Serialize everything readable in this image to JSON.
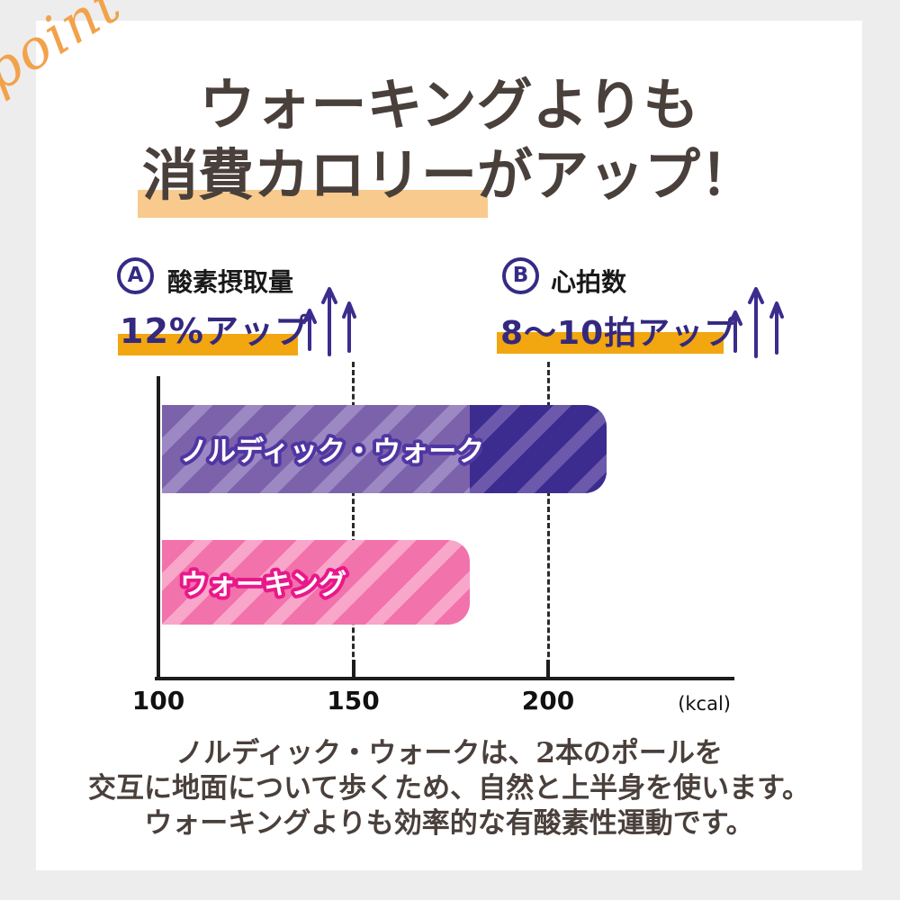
{
  "point_label": "point",
  "title": {
    "line1": "ウォーキングよりも",
    "line2": "消費カロリーがアップ！"
  },
  "badges": [
    {
      "letter": "A",
      "label": "酸素摂取量",
      "stat": "12%アップ"
    },
    {
      "letter": "B",
      "label": "心拍数",
      "stat": "8〜10拍アップ"
    }
  ],
  "chart_data": {
    "type": "bar",
    "orientation": "horizontal",
    "unit": "kcal",
    "xlabel": "(kcal)",
    "x_ticks": [
      100,
      150,
      200
    ],
    "x_tick_labels": [
      "100",
      "150",
      "200"
    ],
    "x_range": [
      100,
      247
    ],
    "gridlines": "dashed vertical at 150 and 200",
    "bars": [
      {
        "name": "ノルディック・ウォーク",
        "value": 214,
        "split_value": 179,
        "base_color": "#7b62ab",
        "stripe_color": "#9c88c2",
        "extra_base_color": "#3d2c8f",
        "extra_stripe_color": "#6c59ab",
        "label_outline": "#5036a2"
      },
      {
        "name": "ウォーキング",
        "value": 179,
        "base_color": "#f272ab",
        "stripe_color": "#f8a6c9",
        "label_outline": "#e9188a"
      }
    ]
  },
  "footer": {
    "line1": "ノルディック・ウォークは、2本のポールを",
    "line2": "交互に地面について歩くため、自然と上半身を使います。",
    "line3": "ウォーキングよりも効率的な有酸素性運動です。"
  },
  "colors": {
    "background": "#ededee",
    "card": "#ffffff",
    "title_text": "#4a403b",
    "title_highlight": "#f8ca8d",
    "stat_text": "#34297e",
    "stat_highlight": "#f2a60f",
    "badge_indigo": "#352b85",
    "arrow": "#3b2c8e",
    "axis": "#1c1c1c",
    "point_script": "#f2a24b"
  }
}
